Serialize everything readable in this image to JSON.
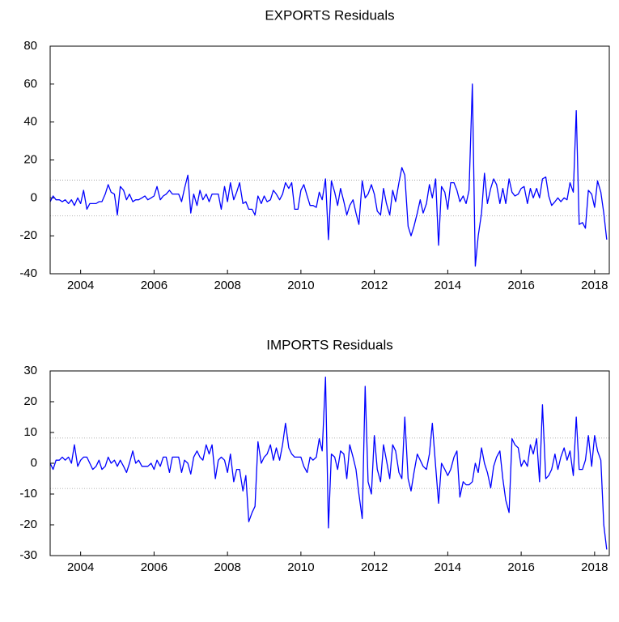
{
  "chart_data": [
    {
      "type": "line",
      "title": "EXPORTS Residuals",
      "color": "#0000ff",
      "x": [
        2003.17,
        2003.25,
        2003.33,
        2003.42,
        2003.5,
        2003.58,
        2003.67,
        2003.75,
        2003.83,
        2003.92,
        2004,
        2004.08,
        2004.17,
        2004.25,
        2004.33,
        2004.42,
        2004.5,
        2004.58,
        2004.67,
        2004.75,
        2004.83,
        2004.92,
        2005,
        2005.08,
        2005.17,
        2005.25,
        2005.33,
        2005.42,
        2005.5,
        2005.58,
        2005.67,
        2005.75,
        2005.83,
        2005.92,
        2006,
        2006.08,
        2006.17,
        2006.25,
        2006.33,
        2006.42,
        2006.5,
        2006.58,
        2006.67,
        2006.75,
        2006.83,
        2006.92,
        2007,
        2007.08,
        2007.17,
        2007.25,
        2007.33,
        2007.42,
        2007.5,
        2007.58,
        2007.67,
        2007.75,
        2007.83,
        2007.92,
        2008,
        2008.08,
        2008.17,
        2008.25,
        2008.33,
        2008.42,
        2008.5,
        2008.58,
        2008.67,
        2008.75,
        2008.83,
        2008.92,
        2009,
        2009.08,
        2009.17,
        2009.25,
        2009.33,
        2009.42,
        2009.5,
        2009.58,
        2009.67,
        2009.75,
        2009.83,
        2009.92,
        2010,
        2010.08,
        2010.17,
        2010.25,
        2010.33,
        2010.42,
        2010.5,
        2010.58,
        2010.67,
        2010.75,
        2010.83,
        2010.92,
        2011,
        2011.08,
        2011.17,
        2011.25,
        2011.33,
        2011.42,
        2011.5,
        2011.58,
        2011.67,
        2011.75,
        2011.83,
        2011.92,
        2012,
        2012.08,
        2012.17,
        2012.25,
        2012.33,
        2012.42,
        2012.5,
        2012.58,
        2012.67,
        2012.75,
        2012.83,
        2012.92,
        2013,
        2013.08,
        2013.17,
        2013.25,
        2013.33,
        2013.42,
        2013.5,
        2013.58,
        2013.67,
        2013.75,
        2013.83,
        2013.92,
        2014,
        2014.08,
        2014.17,
        2014.25,
        2014.33,
        2014.42,
        2014.5,
        2014.58,
        2014.67,
        2014.75,
        2014.83,
        2014.92,
        2015,
        2015.08,
        2015.17,
        2015.25,
        2015.33,
        2015.42,
        2015.5,
        2015.58,
        2015.67,
        2015.75,
        2015.83,
        2015.92,
        2016,
        2016.08,
        2016.17,
        2016.25,
        2016.33,
        2016.42,
        2016.5,
        2016.58,
        2016.67,
        2016.75,
        2016.83,
        2016.92,
        2017,
        2017.08,
        2017.17,
        2017.25,
        2017.33,
        2017.42,
        2017.5,
        2017.58,
        2017.67,
        2017.75,
        2017.83,
        2017.92,
        2018,
        2018.08,
        2018.17,
        2018.25,
        2018.33
      ],
      "values": [
        -2,
        1,
        -1,
        -1,
        -2,
        -1,
        -3,
        -1,
        -4,
        0,
        -3,
        4,
        -6,
        -3,
        -3,
        -3,
        -2,
        -2,
        2,
        7,
        3,
        2,
        -9,
        6,
        4,
        -1,
        2,
        -2,
        -1,
        -1,
        0,
        1,
        -1,
        0,
        1,
        6,
        -1,
        1,
        2,
        4,
        2,
        2,
        2,
        -2,
        5,
        12,
        -8,
        2,
        -4,
        4,
        -1,
        2,
        -2,
        2,
        2,
        2,
        -6,
        6,
        -2,
        8,
        -1,
        3,
        8,
        -3,
        -2,
        -6,
        -6,
        -9,
        1,
        -3,
        1,
        -2,
        -1,
        4,
        2,
        -1,
        2,
        8,
        5,
        8,
        -6,
        -6,
        4,
        7,
        1,
        -4,
        -4,
        -5,
        3,
        -1,
        10,
        -22,
        9,
        3,
        -4,
        5,
        -2,
        -9,
        -4,
        -1,
        -8,
        -14,
        9,
        0,
        2,
        7,
        2,
        -7,
        -9,
        5,
        -3,
        -9,
        4,
        -2,
        8,
        16,
        12,
        -15,
        -20,
        -15,
        -8,
        -1,
        -8,
        -3,
        7,
        0,
        10,
        -25,
        6,
        3,
        -6,
        8,
        8,
        4,
        -2,
        1,
        -3,
        4,
        60,
        -36,
        -20,
        -8,
        13,
        -3,
        5,
        10,
        7,
        -3,
        5,
        -3,
        10,
        3,
        1,
        2,
        5,
        6,
        -3,
        5,
        0,
        5,
        0,
        10,
        11,
        1,
        -4,
        -2,
        0,
        -2,
        0,
        -1,
        8,
        3,
        46,
        -14,
        -13,
        -16,
        4,
        2,
        -5,
        9,
        3,
        -8,
        -22
      ],
      "xlim": [
        2003.17,
        2018.4
      ],
      "xticks": [
        2004,
        2006,
        2008,
        2010,
        2012,
        2014,
        2016,
        2018
      ],
      "ylim": [
        -40,
        80
      ],
      "yticks": [
        -40,
        -20,
        0,
        20,
        40,
        60,
        80
      ],
      "hlines": [
        9.4,
        -9.4
      ]
    },
    {
      "type": "line",
      "title": "IMPORTS Residuals",
      "color": "#0000ff",
      "x": [
        2003.17,
        2003.25,
        2003.33,
        2003.42,
        2003.5,
        2003.58,
        2003.67,
        2003.75,
        2003.83,
        2003.92,
        2004,
        2004.08,
        2004.17,
        2004.25,
        2004.33,
        2004.42,
        2004.5,
        2004.58,
        2004.67,
        2004.75,
        2004.83,
        2004.92,
        2005,
        2005.08,
        2005.17,
        2005.25,
        2005.33,
        2005.42,
        2005.5,
        2005.58,
        2005.67,
        2005.75,
        2005.83,
        2005.92,
        2006,
        2006.08,
        2006.17,
        2006.25,
        2006.33,
        2006.42,
        2006.5,
        2006.58,
        2006.67,
        2006.75,
        2006.83,
        2006.92,
        2007,
        2007.08,
        2007.17,
        2007.25,
        2007.33,
        2007.42,
        2007.5,
        2007.58,
        2007.67,
        2007.75,
        2007.83,
        2007.92,
        2008,
        2008.08,
        2008.17,
        2008.25,
        2008.33,
        2008.42,
        2008.5,
        2008.58,
        2008.67,
        2008.75,
        2008.83,
        2008.92,
        2009,
        2009.08,
        2009.17,
        2009.25,
        2009.33,
        2009.42,
        2009.5,
        2009.58,
        2009.67,
        2009.75,
        2009.83,
        2009.92,
        2010,
        2010.08,
        2010.17,
        2010.25,
        2010.33,
        2010.42,
        2010.5,
        2010.58,
        2010.67,
        2010.75,
        2010.83,
        2010.92,
        2011,
        2011.08,
        2011.17,
        2011.25,
        2011.33,
        2011.42,
        2011.5,
        2011.58,
        2011.67,
        2011.75,
        2011.83,
        2011.92,
        2012,
        2012.08,
        2012.17,
        2012.25,
        2012.33,
        2012.42,
        2012.5,
        2012.58,
        2012.67,
        2012.75,
        2012.83,
        2012.92,
        2013,
        2013.08,
        2013.17,
        2013.25,
        2013.33,
        2013.42,
        2013.5,
        2013.58,
        2013.67,
        2013.75,
        2013.83,
        2013.92,
        2014,
        2014.08,
        2014.17,
        2014.25,
        2014.33,
        2014.42,
        2014.5,
        2014.58,
        2014.67,
        2014.75,
        2014.83,
        2014.92,
        2015,
        2015.08,
        2015.17,
        2015.25,
        2015.33,
        2015.42,
        2015.5,
        2015.58,
        2015.67,
        2015.75,
        2015.83,
        2015.92,
        2016,
        2016.08,
        2016.17,
        2016.25,
        2016.33,
        2016.42,
        2016.5,
        2016.58,
        2016.67,
        2016.75,
        2016.83,
        2016.92,
        2017,
        2017.08,
        2017.17,
        2017.25,
        2017.33,
        2017.42,
        2017.5,
        2017.58,
        2017.67,
        2017.75,
        2017.83,
        2017.92,
        2018,
        2018.08,
        2018.17,
        2018.25,
        2018.33
      ],
      "values": [
        0,
        -2,
        1,
        1,
        2,
        1,
        2,
        0,
        6,
        -1,
        1,
        2,
        2,
        0,
        -2,
        -1,
        1,
        -2,
        -1,
        2,
        0,
        1,
        -1,
        1,
        -1,
        -3,
        0,
        4,
        0,
        1,
        -1,
        -1,
        -1,
        0,
        -2,
        1,
        -1,
        2,
        2,
        -3,
        2,
        2,
        2,
        -3,
        1,
        0,
        -3.5,
        2,
        4,
        2,
        1,
        6,
        3,
        6,
        -5,
        1,
        2,
        1,
        -3,
        3,
        -6,
        -2,
        -2,
        -9,
        -4,
        -19,
        -16,
        -14,
        7,
        0,
        2,
        3,
        6,
        1,
        5,
        1,
        6,
        13,
        5,
        3,
        2,
        2,
        2,
        -1,
        -3,
        2,
        1,
        2,
        8,
        4,
        28,
        -21,
        3,
        2,
        -2,
        4,
        3,
        -5,
        6,
        2,
        -2,
        -10,
        -18,
        25,
        -6,
        -10,
        9,
        -2,
        -6,
        6,
        1,
        -5,
        6,
        4,
        -3,
        -5,
        15,
        -5,
        -9,
        -3,
        3,
        1,
        -1,
        -2,
        3,
        13,
        -1,
        -13,
        0,
        -2,
        -4,
        -2,
        2,
        4,
        -11,
        -6,
        -7,
        -7,
        -6,
        0,
        -3,
        5,
        0,
        -3,
        -8,
        -1,
        2,
        4,
        -5,
        -12,
        -16,
        8,
        6,
        5,
        -1,
        1,
        -1,
        6,
        3,
        8,
        -6,
        19,
        -5,
        -4,
        -2,
        3,
        -2,
        2,
        5,
        1,
        4,
        -4,
        15,
        -2,
        -2,
        1,
        9,
        -1,
        9,
        4,
        1,
        -20,
        -28
      ],
      "xlim": [
        2003.17,
        2018.4
      ],
      "xticks": [
        2004,
        2006,
        2008,
        2010,
        2012,
        2014,
        2016,
        2018
      ],
      "ylim": [
        -30,
        30
      ],
      "yticks": [
        -30,
        -20,
        -10,
        0,
        10,
        20,
        30
      ],
      "hlines": [
        8.2,
        -8.2
      ]
    }
  ]
}
